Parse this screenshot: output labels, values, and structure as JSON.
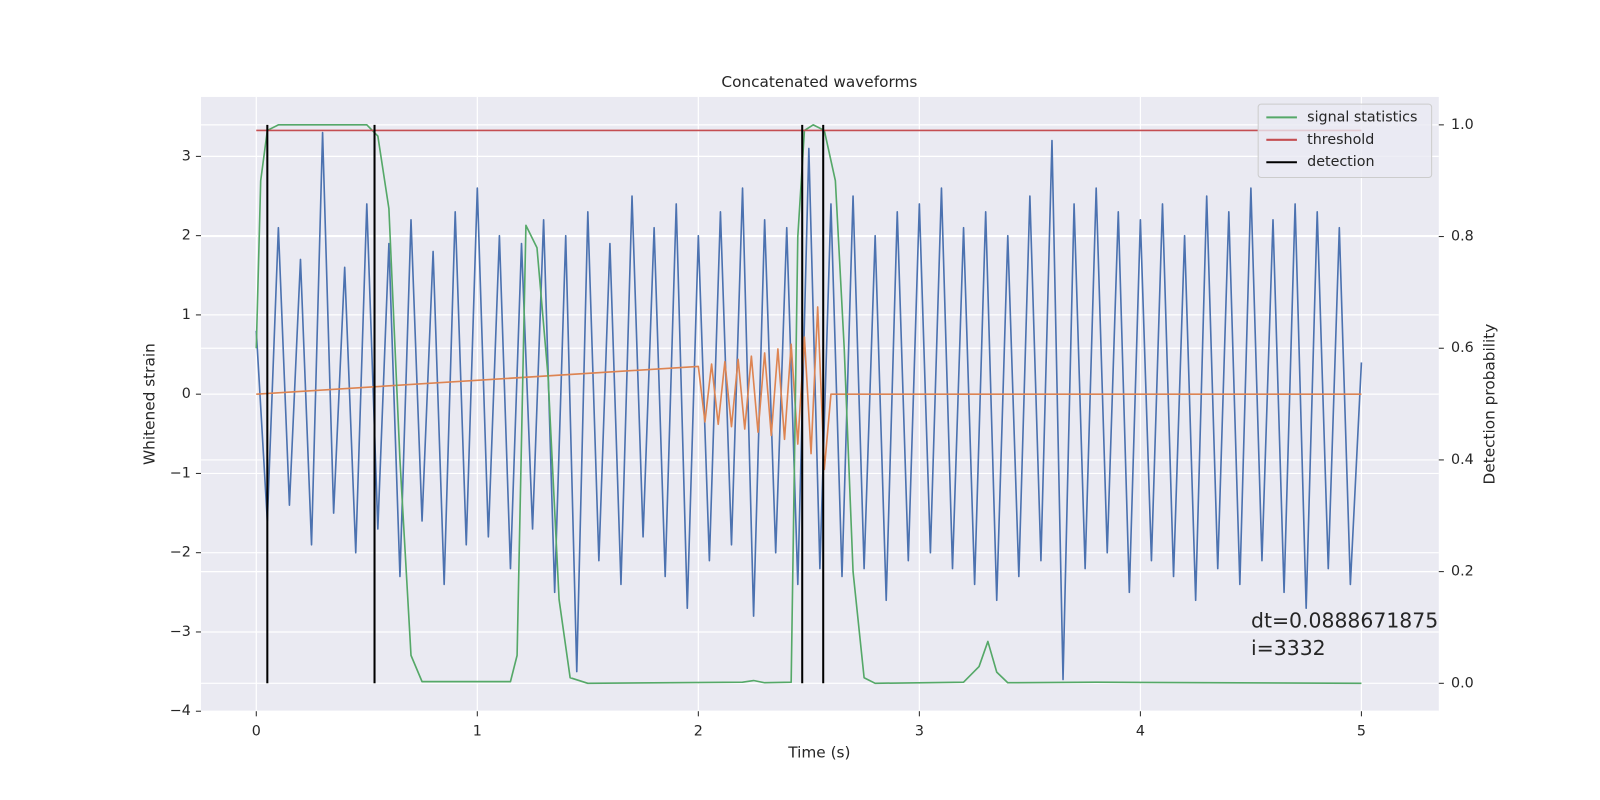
{
  "chart_data": {
    "type": "line",
    "title": "Concatenated waveforms",
    "xlabel": "Time (s)",
    "ylabel": "Whitened strain",
    "y2label": "Detection probability",
    "xlim": [
      -0.25,
      5.35
    ],
    "ylim": [
      -4,
      3.75
    ],
    "y2lim": [
      -0.05,
      1.05
    ],
    "xticks": [
      0,
      1,
      2,
      3,
      4,
      5
    ],
    "yticks": [
      {
        "value": -4,
        "label": "−4"
      },
      {
        "value": -3,
        "label": "−3"
      },
      {
        "value": -2,
        "label": "−2"
      },
      {
        "value": -1,
        "label": "−1"
      },
      0,
      1,
      2,
      3
    ],
    "y2ticks": [
      {
        "value": 0,
        "label": "0.0"
      },
      0.2,
      0.4,
      0.6,
      0.8,
      {
        "value": 1,
        "label": "1.0"
      }
    ],
    "grid": true,
    "legend": "upper right",
    "series": [
      {
        "color": "#4c72b0",
        "x": [
          0,
          0.05,
          0.1,
          0.15,
          0.2,
          0.25,
          0.3,
          0.35,
          0.4,
          0.45,
          0.5,
          0.55,
          0.6,
          0.65,
          0.7,
          0.75,
          0.8,
          0.85,
          0.9,
          0.95,
          1.0,
          1.05,
          1.1,
          1.15,
          1.2,
          1.25,
          1.3,
          1.35,
          1.4,
          1.45,
          1.5,
          1.55,
          1.6,
          1.65,
          1.7,
          1.75,
          1.8,
          1.85,
          1.9,
          1.95,
          2.0,
          2.05,
          2.1,
          2.15,
          2.2,
          2.25,
          2.3,
          2.35,
          2.4,
          2.45,
          2.5,
          2.55,
          2.6,
          2.65,
          2.7,
          2.75,
          2.8,
          2.85,
          2.9,
          2.95,
          3.0,
          3.05,
          3.1,
          3.15,
          3.2,
          3.25,
          3.3,
          3.35,
          3.4,
          3.45,
          3.5,
          3.55,
          3.6,
          3.65,
          3.7,
          3.75,
          3.8,
          3.85,
          3.9,
          3.95,
          4.0,
          4.05,
          4.1,
          4.15,
          4.2,
          4.25,
          4.3,
          4.35,
          4.4,
          4.45,
          4.5,
          4.55,
          4.6,
          4.65,
          4.7,
          4.75,
          4.8,
          4.85,
          4.9,
          4.95,
          5.0
        ],
        "values": [
          0.8,
          -1.6,
          2.1,
          -1.4,
          1.7,
          -1.9,
          3.3,
          -1.5,
          1.6,
          -2.0,
          2.4,
          -1.7,
          1.9,
          -2.3,
          2.2,
          -1.6,
          1.8,
          -2.4,
          2.3,
          -1.9,
          2.6,
          -1.8,
          2.0,
          -2.2,
          1.9,
          -1.7,
          2.2,
          -2.5,
          2.0,
          -3.5,
          2.3,
          -2.1,
          1.9,
          -2.4,
          2.5,
          -1.8,
          2.1,
          -2.3,
          2.4,
          -2.7,
          2.0,
          -2.1,
          2.3,
          -1.9,
          2.6,
          -2.8,
          2.2,
          -2.0,
          2.1,
          -2.4,
          3.1,
          -2.2,
          2.4,
          -2.3,
          2.5,
          -2.2,
          2.0,
          -2.6,
          2.3,
          -2.1,
          2.4,
          -2.0,
          2.6,
          -2.2,
          2.1,
          -2.4,
          2.3,
          -2.6,
          2.0,
          -2.3,
          2.5,
          -2.1,
          3.2,
          -3.6,
          2.4,
          -2.2,
          2.6,
          -2.0,
          2.3,
          -2.5,
          2.2,
          -2.1,
          2.4,
          -2.3,
          2.0,
          -2.6,
          2.5,
          -2.2,
          2.3,
          -2.4,
          2.6,
          -2.1,
          2.2,
          -2.5,
          2.4,
          -2.7,
          2.3,
          -2.2,
          2.1,
          -2.4,
          0.4
        ]
      },
      {
        "color": "#dd8452",
        "x": [
          0,
          2.0,
          2.03,
          2.06,
          2.09,
          2.12,
          2.15,
          2.18,
          2.21,
          2.24,
          2.27,
          2.3,
          2.33,
          2.36,
          2.39,
          2.42,
          2.45,
          2.48,
          2.51,
          2.54,
          2.57,
          2.6,
          5
        ],
        "values": [
          0,
          0.35,
          -0.35,
          0.38,
          -0.38,
          0.41,
          -0.41,
          0.44,
          -0.44,
          0.48,
          -0.48,
          0.52,
          -0.52,
          0.57,
          -0.57,
          0.63,
          -0.63,
          0.72,
          -0.75,
          1.1,
          -0.95,
          0,
          0
        ]
      },
      {
        "name": "signal statistics",
        "color": "#55a868",
        "axis": "y2",
        "x": [
          0,
          0.02,
          0.05,
          0.1,
          0.5,
          0.55,
          0.6,
          0.65,
          0.7,
          0.75,
          1.15,
          1.18,
          1.22,
          1.27,
          1.32,
          1.37,
          1.42,
          1.5,
          2.2,
          2.25,
          2.3,
          2.42,
          2.45,
          2.48,
          2.52,
          2.57,
          2.62,
          2.66,
          2.7,
          2.75,
          2.8,
          3.2,
          3.27,
          3.31,
          3.35,
          3.4,
          3.8,
          5
        ],
        "values": [
          0.6,
          0.9,
          0.99,
          1.0,
          1.0,
          0.98,
          0.85,
          0.4,
          0.05,
          0.003,
          0.003,
          0.05,
          0.82,
          0.78,
          0.55,
          0.15,
          0.01,
          0.0,
          0.002,
          0.005,
          0.001,
          0.002,
          0.8,
          0.99,
          1.0,
          0.99,
          0.9,
          0.6,
          0.2,
          0.01,
          0,
          0.002,
          0.03,
          0.075,
          0.02,
          0.001,
          0.002,
          0
        ]
      },
      {
        "name": "threshold",
        "color": "#c44e52",
        "axis": "y2",
        "x": [
          0,
          5
        ],
        "values": [
          0.99,
          0.99
        ]
      }
    ],
    "detections": {
      "name": "detection",
      "color": "#000000",
      "axis": "y2",
      "x": [
        0.05,
        0.535,
        2.47,
        2.565
      ],
      "ymin": 0,
      "ymax": 1
    },
    "annotations": [
      "dt=0.0888671875",
      " i=3332"
    ]
  }
}
